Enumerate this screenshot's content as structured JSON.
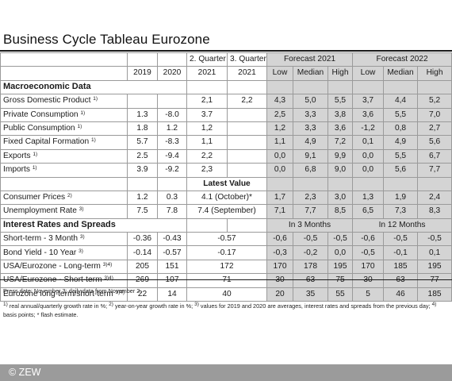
{
  "title": "Business Cycle Tableau Eurozone",
  "header": {
    "row1": [
      "",
      "",
      "",
      "2. Quarter",
      "3. Quarter",
      "Forecast 2021",
      "Forecast 2022"
    ],
    "row2": [
      "",
      "2019",
      "2020",
      "2021",
      "2021",
      "Low",
      "Median",
      "High",
      "Low",
      "Median",
      "High"
    ]
  },
  "sections": [
    {
      "heading": "Macroeconomic Data",
      "rows": [
        {
          "label": "Gross Domestic Product",
          "note": "1)",
          "cells": [
            "",
            "",
            "2,1",
            "2,2",
            "4,3",
            "5,0",
            "5,5",
            "3,7",
            "4,4",
            "5,2"
          ]
        },
        {
          "label": "Private Consumption",
          "note": "1)",
          "cells": [
            "1.3",
            "-8.0",
            "3.7",
            "",
            "2,5",
            "3,3",
            "3,8",
            "3,6",
            "5,5",
            "7,0"
          ]
        },
        {
          "label": "Public Consumption",
          "note": "1)",
          "cells": [
            "1.8",
            "1.2",
            "1,2",
            "",
            "1,2",
            "3,3",
            "3,6",
            "-1,2",
            "0,8",
            "2,7"
          ]
        },
        {
          "label": "Fixed Capital Formation",
          "note": "1)",
          "cells": [
            "5.7",
            "-8.3",
            "1,1",
            "",
            "1,1",
            "4,9",
            "7,2",
            "0,1",
            "4,9",
            "5,6"
          ]
        },
        {
          "label": "Exports",
          "note": "1)",
          "cells": [
            "2.5",
            "-9.4",
            "2,2",
            "",
            "0,0",
            "9,1",
            "9,9",
            "0,0",
            "5,5",
            "6,7"
          ]
        },
        {
          "label": "Imports",
          "note": "1)",
          "cells": [
            "3.9",
            "-9.2",
            "2,3",
            "",
            "0,0",
            "6,8",
            "9,0",
            "0,0",
            "5,6",
            "7,7"
          ]
        }
      ]
    }
  ],
  "latest_value_label": "Latest Value",
  "latest_rows": [
    {
      "label": "Consumer Prices",
      "note": "2)",
      "cells": [
        "1.2",
        "0.3"
      ],
      "latest": "4.1 (October)*",
      "forecast": [
        "1,7",
        "2,3",
        "3,0",
        "1,3",
        "1,9",
        "2,4"
      ]
    },
    {
      "label": "Unemployment Rate",
      "note": "3)",
      "cells": [
        "7.5",
        "7.8"
      ],
      "latest": "7.4 (September)",
      "forecast": [
        "7,1",
        "7,7",
        "8,5",
        "6,5",
        "7,3",
        "8,3"
      ]
    }
  ],
  "rates": {
    "heading": "Interest Rates and Spreads",
    "in3": "In 3 Months",
    "in12": "In 12 Months",
    "rows": [
      {
        "label": "Short-term - 3 Month",
        "note": "3)",
        "cells": [
          "-0.36",
          "-0.43"
        ],
        "latest": "-0.57",
        "forecast": [
          "-0,6",
          "-0,5",
          "-0,5",
          "-0,6",
          "-0,5",
          "-0,5"
        ]
      },
      {
        "label": "Bond Yield - 10 Year",
        "note": "3)",
        "cells": [
          "-0.14",
          "-0.57"
        ],
        "latest": "-0.17",
        "forecast": [
          "-0,3",
          "-0,2",
          "0,0",
          "-0,5",
          "-0,1",
          "0,1"
        ]
      },
      {
        "label": "USA/Eurozone - Long-term",
        "note": "3)4)",
        "cells": [
          "205",
          "151"
        ],
        "latest": "172",
        "forecast": [
          "170",
          "178",
          "195",
          "170",
          "185",
          "195"
        ]
      },
      {
        "label": "USA/Eurozone - Short-term",
        "note": "3)4)",
        "cells": [
          "269",
          "107"
        ],
        "latest": "71",
        "forecast": [
          "30",
          "63",
          "75",
          "30",
          "63",
          "77"
        ]
      },
      {
        "label": "Eurozone long-term/short-term",
        "note": "3)4)",
        "cells": [
          "22",
          "14"
        ],
        "latest": "40",
        "forecast": [
          "20",
          "35",
          "55",
          "5",
          "46",
          "185"
        ]
      }
    ]
  },
  "notes": {
    "press": "Press date: November 3; daily data from November 2.",
    "n1m": "1)",
    "n1t": " real annual/quarterly growth rate in %; ",
    "n2m": "2)",
    "n2t": " year-on-year growth rate in %; ",
    "n3m": "3)",
    "n3t": " values for 2019 and 2020 are averages, interest rates and spreads from the previous day; ",
    "n4m": "4)",
    "n4t": " basis points; * flash estimate."
  },
  "footer": "© ZEW"
}
